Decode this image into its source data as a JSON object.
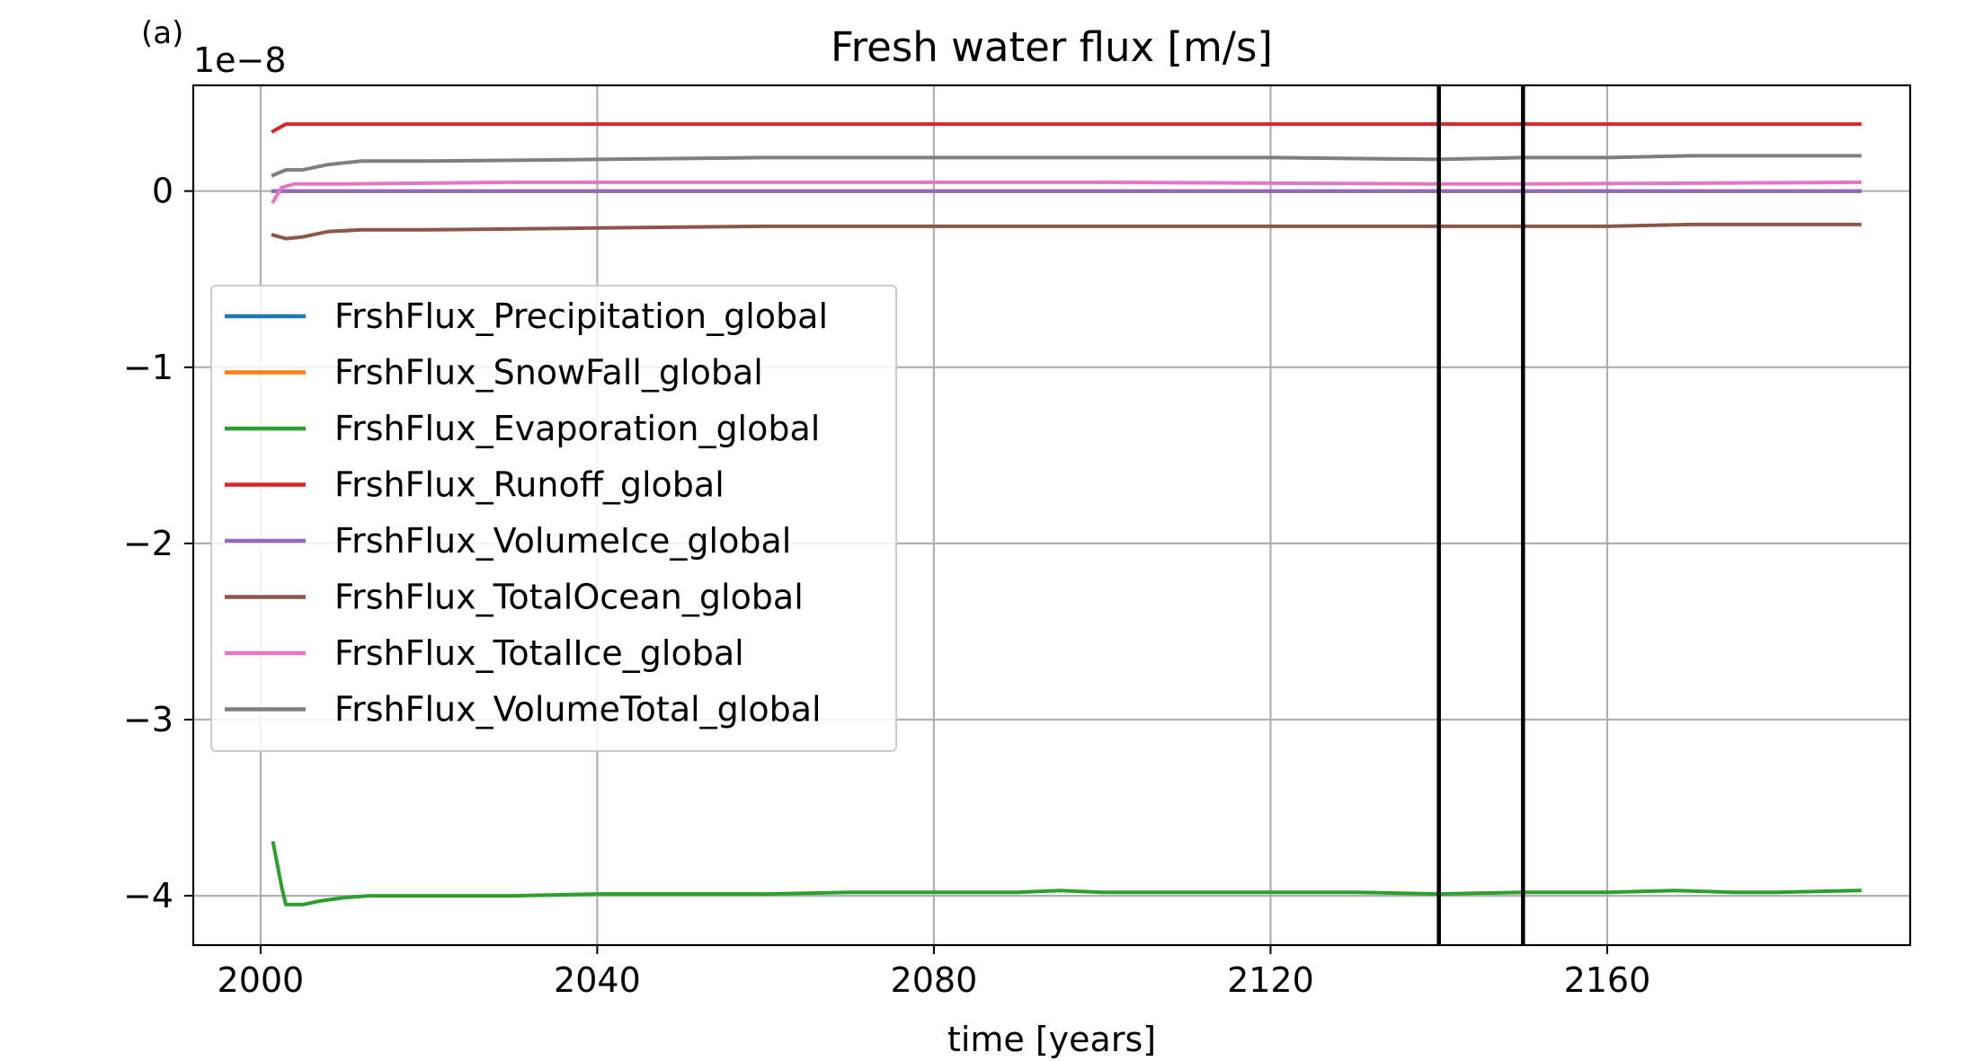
{
  "panel_label": "(a)",
  "offset_text": "1e−8",
  "chart_data": {
    "type": "line",
    "title": "Fresh water flux [m/s]",
    "xlabel": "time [years]",
    "ylabel": "",
    "y_multiplier": "1e-8",
    "xlim": [
      1992,
      2196
    ],
    "ylim": [
      -4.28,
      0.6
    ],
    "x_ticks": [
      2000,
      2040,
      2080,
      2120,
      2160
    ],
    "x_tick_labels": [
      "2000",
      "2040",
      "2080",
      "2120",
      "2160"
    ],
    "y_ticks": [
      0,
      -1,
      -2,
      -3,
      -4
    ],
    "y_tick_labels": [
      "0",
      "−1",
      "−2",
      "−3",
      "−4"
    ],
    "grid": true,
    "legend_position": "center-left",
    "vertical_lines": [
      2140,
      2150
    ],
    "vertical_line_color": "#000000",
    "series": [
      {
        "name": "FrshFlux_Precipitation_global",
        "color": "#1f77b4",
        "x": [
          2001.5,
          2003,
          2010,
          2050,
          2100,
          2150,
          2190
        ],
        "y": [
          0.0,
          0.0,
          0.0,
          0.0,
          0.0,
          0.0,
          0.0
        ]
      },
      {
        "name": "FrshFlux_SnowFall_global",
        "color": "#ff7f0e",
        "x": [
          2001.5,
          2003,
          2010,
          2050,
          2100,
          2150,
          2190
        ],
        "y": [
          0.0,
          0.0,
          0.0,
          0.0,
          0.0,
          0.0,
          0.0
        ]
      },
      {
        "name": "FrshFlux_Evaporation_global",
        "color": "#2ca02c",
        "x": [
          2001.5,
          2002.5,
          2003,
          2005,
          2007,
          2010,
          2013,
          2020,
          2030,
          2040,
          2050,
          2060,
          2070,
          2080,
          2090,
          2095,
          2100,
          2110,
          2120,
          2130,
          2140,
          2150,
          2160,
          2168,
          2175,
          2180,
          2190
        ],
        "y": [
          -3.7,
          -3.95,
          -4.05,
          -4.05,
          -4.03,
          -4.01,
          -4.0,
          -4.0,
          -4.0,
          -3.99,
          -3.99,
          -3.99,
          -3.98,
          -3.98,
          -3.98,
          -3.97,
          -3.98,
          -3.98,
          -3.98,
          -3.98,
          -3.99,
          -3.98,
          -3.98,
          -3.97,
          -3.98,
          -3.98,
          -3.97
        ]
      },
      {
        "name": "FrshFlux_Runoff_global",
        "color": "#d62728",
        "x": [
          2001.5,
          2003,
          2010,
          2050,
          2100,
          2150,
          2190
        ],
        "y": [
          0.34,
          0.38,
          0.38,
          0.38,
          0.38,
          0.38,
          0.38
        ]
      },
      {
        "name": "FrshFlux_VolumeIce_global",
        "color": "#9467bd",
        "x": [
          2001.5,
          2003,
          2010,
          2050,
          2100,
          2150,
          2190
        ],
        "y": [
          0.0,
          0.0,
          0.0,
          0.0,
          0.0,
          0.0,
          0.0
        ]
      },
      {
        "name": "FrshFlux_TotalOcean_global",
        "color": "#8c564b",
        "x": [
          2001.5,
          2003,
          2005,
          2008,
          2012,
          2020,
          2040,
          2060,
          2080,
          2100,
          2120,
          2140,
          2150,
          2160,
          2170,
          2190
        ],
        "y": [
          -0.25,
          -0.27,
          -0.26,
          -0.23,
          -0.22,
          -0.22,
          -0.21,
          -0.2,
          -0.2,
          -0.2,
          -0.2,
          -0.2,
          -0.2,
          -0.2,
          -0.19,
          -0.19
        ]
      },
      {
        "name": "FrshFlux_TotalIce_global",
        "color": "#e377c2",
        "x": [
          2001.5,
          2002.5,
          2004,
          2010,
          2030,
          2060,
          2100,
          2140,
          2150,
          2190
        ],
        "y": [
          -0.06,
          0.02,
          0.04,
          0.04,
          0.05,
          0.05,
          0.05,
          0.04,
          0.04,
          0.05
        ]
      },
      {
        "name": "FrshFlux_VolumeTotal_global",
        "color": "#7f7f7f",
        "x": [
          2001.5,
          2003,
          2005,
          2008,
          2012,
          2020,
          2040,
          2060,
          2080,
          2100,
          2120,
          2140,
          2150,
          2160,
          2170,
          2190
        ],
        "y": [
          0.09,
          0.12,
          0.12,
          0.15,
          0.17,
          0.17,
          0.18,
          0.19,
          0.19,
          0.19,
          0.19,
          0.18,
          0.19,
          0.19,
          0.2,
          0.2
        ]
      }
    ]
  }
}
